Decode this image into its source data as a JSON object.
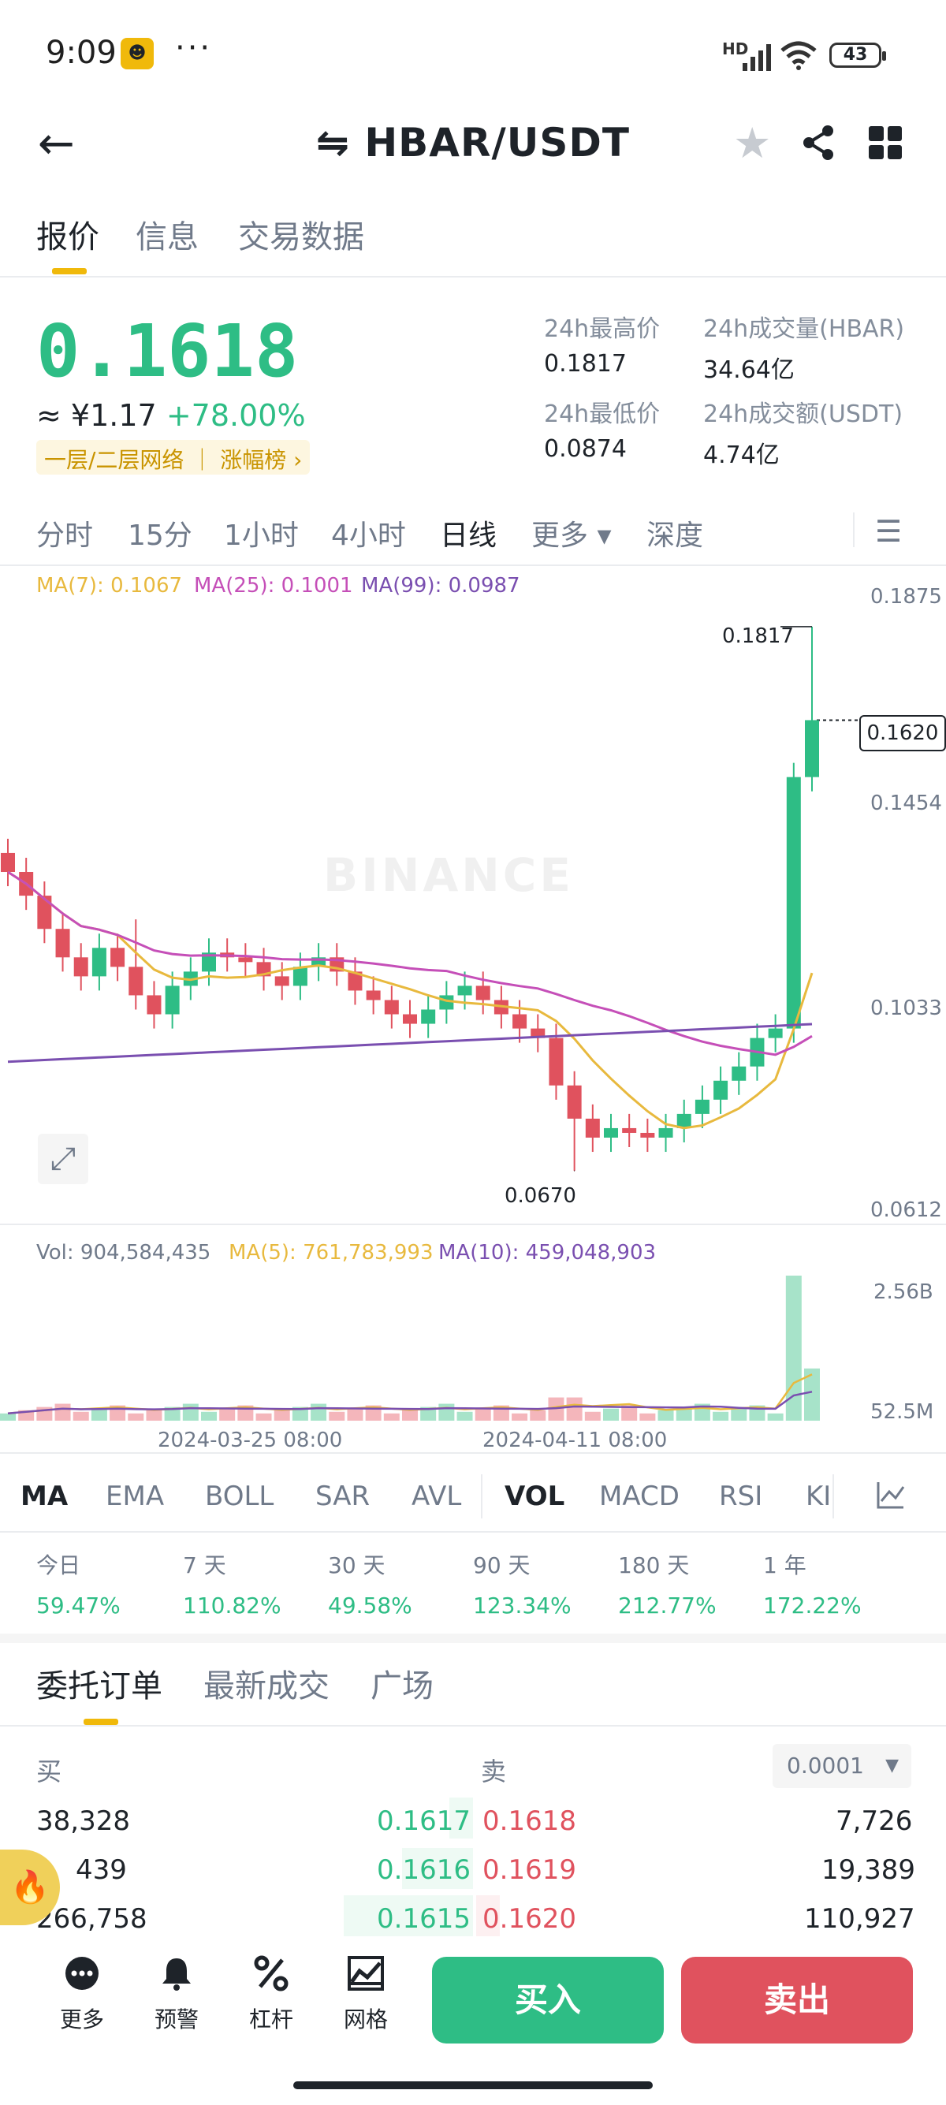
{
  "status": {
    "time": "9:09",
    "dots": "···",
    "battery": "43",
    "network": "HD"
  },
  "header": {
    "title": "⇋ HBAR/USDT"
  },
  "tabs": [
    "报价",
    "信息",
    "交易数据"
  ],
  "price": {
    "last": "0.1618",
    "cny": "≈ ¥1.17",
    "change": "+78.00%",
    "tag": "一层/二层网络 ｜ 涨幅榜 ›"
  },
  "stats": {
    "high_label": "24h最高价",
    "high": "0.1817",
    "vol_label": "24h成交量(HBAR)",
    "vol": "34.64亿",
    "low_label": "24h最低价",
    "low": "0.0874",
    "amt_label": "24h成交额(USDT)",
    "amt": "4.74亿"
  },
  "intervals": [
    "分时",
    "15分",
    "1小时",
    "4小时",
    "日线",
    "更多 ▾",
    "深度"
  ],
  "ma_legend": {
    "ma7": "MA(7): 0.1067",
    "ma25": "MA(25): 0.1001",
    "ma99": "MA(99): 0.0987"
  },
  "price_axis": [
    "0.1875",
    "0.1454",
    "0.1033",
    "0.0612"
  ],
  "current_price_box": "0.1620",
  "annotations": {
    "high": "0.1817",
    "low": "0.0670"
  },
  "watermark": "BINANCE",
  "vol_legend": {
    "vol": "Vol: 904,584,435",
    "ma5": "MA(5): 761,783,993",
    "ma10": "MA(10): 459,048,903"
  },
  "vol_axis": [
    "2.56B",
    "52.5M"
  ],
  "dates": [
    "2024-03-25 08:00",
    "2024-04-11 08:00"
  ],
  "indicators": [
    "MA",
    "EMA",
    "BOLL",
    "SAR",
    "AVL",
    "VOL",
    "MACD",
    "RSI",
    "KI"
  ],
  "returns": [
    {
      "label": "今日",
      "value": "59.47%"
    },
    {
      "label": "7 天",
      "value": "110.82%"
    },
    {
      "label": "30 天",
      "value": "49.58%"
    },
    {
      "label": "90 天",
      "value": "123.34%"
    },
    {
      "label": "180 天",
      "value": "212.77%"
    },
    {
      "label": "1 年",
      "value": "172.22%"
    }
  ],
  "order_tabs": [
    "委托订单",
    "最新成交",
    "广场"
  ],
  "orderbook": {
    "buy_label": "买",
    "sell_label": "卖",
    "precision": "0.0001",
    "rows": [
      {
        "bid_qty": "38,328",
        "bid": "0.1617",
        "ask": "0.1618",
        "ask_qty": "7,726"
      },
      {
        "bid_qty": "439",
        "bid": "0.1616",
        "ask": "0.1619",
        "ask_qty": "19,389"
      },
      {
        "bid_qty": "266,758",
        "bid": "0.1615",
        "ask": "0.1620",
        "ask_qty": "110,927"
      }
    ]
  },
  "bottom_nav": [
    {
      "icon": "more-icon",
      "label": "更多"
    },
    {
      "icon": "bell-icon",
      "label": "预警"
    },
    {
      "icon": "leverage-icon",
      "label": "杠杆"
    },
    {
      "icon": "grid-trading-icon",
      "label": "网格"
    }
  ],
  "actions": {
    "buy": "买入",
    "sell": "卖出"
  },
  "chart_data": {
    "type": "candlestick",
    "price_range": [
      0.0612,
      0.1875
    ],
    "volume_axis": [
      "52.5M",
      "2.56B"
    ],
    "candles_approx_closes": [
      0.13,
      0.125,
      0.118,
      0.112,
      0.108,
      0.114,
      0.11,
      0.104,
      0.1,
      0.106,
      0.109,
      0.113,
      0.112,
      0.111,
      0.108,
      0.106,
      0.11,
      0.112,
      0.109,
      0.105,
      0.103,
      0.1,
      0.098,
      0.101,
      0.104,
      0.106,
      0.103,
      0.1,
      0.097,
      0.095,
      0.085,
      0.078,
      0.074,
      0.076,
      0.075,
      0.074,
      0.076,
      0.079,
      0.082,
      0.086,
      0.089,
      0.095,
      0.097,
      0.15,
      0.162
    ],
    "series": [
      {
        "name": "MA(7)",
        "color": "#e8b93e"
      },
      {
        "name": "MA(25)",
        "color": "#c54fb8"
      },
      {
        "name": "MA(99)",
        "color": "#7a4fb0"
      }
    ]
  }
}
